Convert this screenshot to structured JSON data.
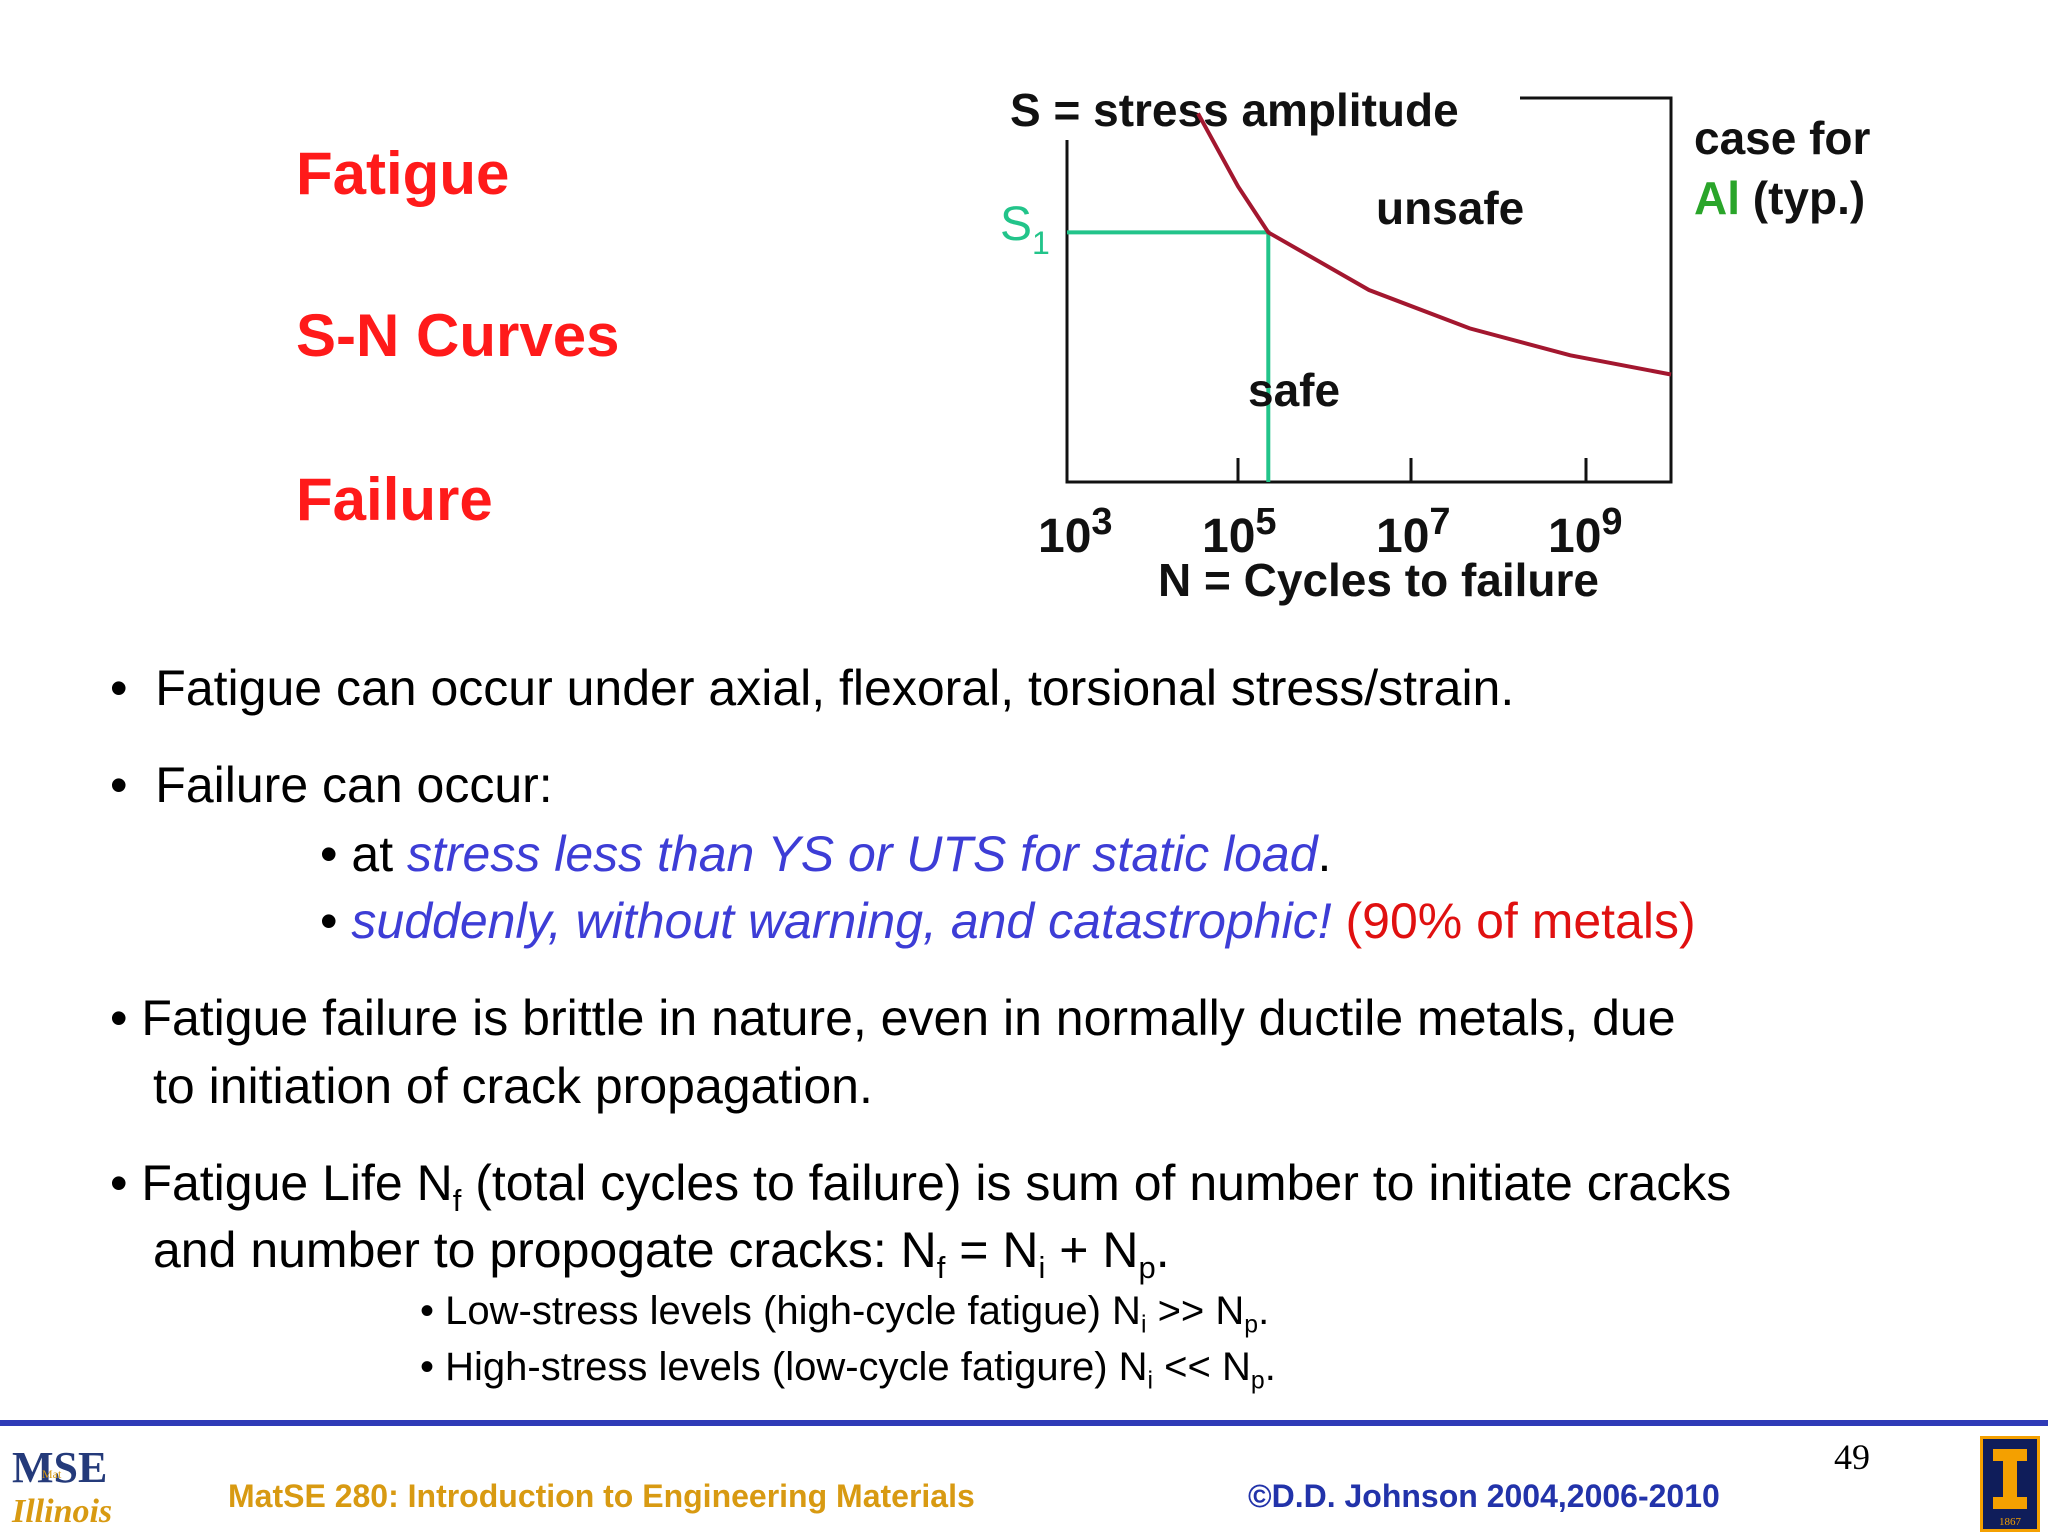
{
  "slide": {
    "titles": [
      "Fatigue",
      "S-N Curves",
      "Failure"
    ],
    "page_number": "49"
  },
  "chart": {
    "y_label": "S = stress amplitude",
    "x_label": "N = Cycles to failure",
    "x_ticks": [
      {
        "base": "10",
        "exp": "3"
      },
      {
        "base": "10",
        "exp": "5"
      },
      {
        "base": "10",
        "exp": "7"
      },
      {
        "base": "10",
        "exp": "9"
      }
    ],
    "s1_label": {
      "main": "S",
      "sub": "1"
    },
    "region_unsafe": "unsafe",
    "region_safe": "safe",
    "case_line1": "case for",
    "case_al": "Al",
    "case_typ": " (typ.)",
    "colors": {
      "curve": "#a3172f",
      "s1": "#22c48a",
      "al": "#2aa52a",
      "axis": "#111111"
    }
  },
  "chart_data": {
    "type": "line",
    "title": "",
    "xlabel": "N = Cycles to failure",
    "ylabel": "S = stress amplitude",
    "xscale": "log",
    "xlim": [
      1000,
      1000000000
    ],
    "series": [
      {
        "name": "",
        "x": [
          20000,
          50000,
          100000,
          1000000,
          10000000,
          100000000,
          1000000000
        ],
        "y": [
          0.96,
          0.77,
          0.65,
          0.5,
          0.4,
          0.33,
          0.28
        ]
      }
    ],
    "annotations": [
      "S1",
      "unsafe",
      "safe",
      "case for Al (typ.)"
    ]
  },
  "bullets": {
    "b1": "Fatigue can occur under axial, flexoral, torsional stress/strain.",
    "b2": "Failure can occur:",
    "b2a_prefix": "at ",
    "b2a_italic": "stress less than YS or UTS for static load",
    "b2a_suffix": ".",
    "b2b_italic": "suddenly, without warning, and catastrophic!",
    "b2b_red": " (90% of metals)",
    "b3_line1": "Fatigue failure is brittle in nature, even in normally ductile metals,  due",
    "b3_line2": "to initiation of crack propagation.",
    "b4_line1_a": "Fatigue Life N",
    "b4_line1_sub": "f",
    "b4_line1_b": " (total cycles to failure) is sum of number to initiate cracks",
    "b4_line2_a": "and number to propogate cracks:  N",
    "b4_line2_sub1": "f",
    "b4_line2_b": " = N",
    "b4_line2_sub2": "i",
    "b4_line2_c": " + N",
    "b4_line2_sub3": "p",
    "b4_line2_d": ".",
    "s1_a": "Low-stress levels (high-cycle fatigue) N",
    "s1_sub1": "i",
    "s1_b": " >> N",
    "s1_sub2": "p",
    "s1_c": ".",
    "s2_a": "High-stress levels (low-cycle fatigure) N",
    "s2_sub1": "i",
    "s2_b": " << N",
    "s2_sub2": "p",
    "s2_c": "."
  },
  "footer": {
    "course": "MatSE 280: Introduction to Engineering Materials",
    "copyright": "©D.D. Johnson 2004,2006-2010",
    "logo_mse": "MSE",
    "logo_mat": "Mat",
    "logo_illinois": "Illinois",
    "logo_year": "1867"
  }
}
